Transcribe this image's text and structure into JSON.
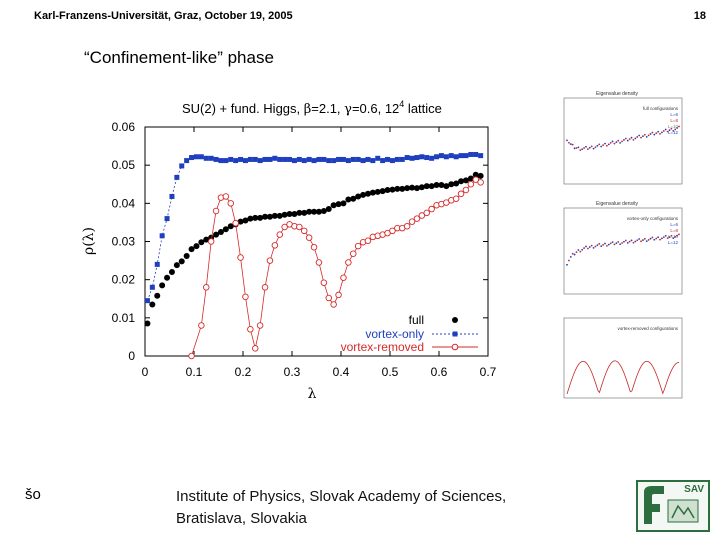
{
  "header": {
    "left": "Karl-Franzens-Universität, Graz, October 19, 2005",
    "page": "18"
  },
  "slide_title": "“Confinement-like” phase",
  "chart_data": {
    "type": "scatter",
    "title_parts": {
      "t1": "SU(2) + fund. Higgs, ",
      "beta": "β",
      "t2": "=2.1, ",
      "gamma": "γ",
      "t3": "=0.6, 12",
      "sup": "4",
      "t4": " lattice"
    },
    "xlabel": "λ",
    "ylabel": "ρ(λ)",
    "xlim": [
      0,
      0.7
    ],
    "ylim": [
      0,
      0.06
    ],
    "x_ticks": [
      "0",
      "0.1",
      "0.2",
      "0.3",
      "0.4",
      "0.5",
      "0.6",
      "0.7"
    ],
    "y_ticks": [
      "0",
      "0.01",
      "0.02",
      "0.03",
      "0.04",
      "0.05",
      "0.06"
    ],
    "legend": [
      "full",
      "vortex-only",
      "vortex-removed"
    ],
    "series": [
      {
        "name": "full",
        "color": "#000000",
        "marker": "filled-circle",
        "x": [
          0.005,
          0.015,
          0.025,
          0.035,
          0.045,
          0.055,
          0.065,
          0.075,
          0.085,
          0.095,
          0.105,
          0.115,
          0.125,
          0.135,
          0.145,
          0.155,
          0.165,
          0.175,
          0.185,
          0.195,
          0.205,
          0.215,
          0.225,
          0.235,
          0.245,
          0.255,
          0.265,
          0.275,
          0.285,
          0.295,
          0.305,
          0.315,
          0.325,
          0.335,
          0.345,
          0.355,
          0.365,
          0.375,
          0.385,
          0.395,
          0.405,
          0.415,
          0.425,
          0.435,
          0.445,
          0.455,
          0.465,
          0.475,
          0.485,
          0.495,
          0.505,
          0.515,
          0.525,
          0.535,
          0.545,
          0.555,
          0.565,
          0.575,
          0.585,
          0.595,
          0.605,
          0.615,
          0.625,
          0.635,
          0.645,
          0.655,
          0.665,
          0.675,
          0.685
        ],
        "y": [
          0.0085,
          0.0135,
          0.0158,
          0.0185,
          0.0205,
          0.022,
          0.0238,
          0.0248,
          0.0262,
          0.028,
          0.0288,
          0.0298,
          0.0305,
          0.031,
          0.0318,
          0.0325,
          0.0332,
          0.034,
          0.0345,
          0.0352,
          0.0355,
          0.036,
          0.0362,
          0.0362,
          0.0365,
          0.0365,
          0.0367,
          0.0367,
          0.037,
          0.0372,
          0.0372,
          0.0375,
          0.0375,
          0.0378,
          0.0378,
          0.0378,
          0.038,
          0.0385,
          0.0395,
          0.0398,
          0.04,
          0.041,
          0.0412,
          0.0418,
          0.0422,
          0.0425,
          0.0428,
          0.043,
          0.0432,
          0.0435,
          0.0436,
          0.0438,
          0.0438,
          0.044,
          0.0441,
          0.044,
          0.0442,
          0.0445,
          0.0445,
          0.0448,
          0.0448,
          0.0445,
          0.045,
          0.0452,
          0.0458,
          0.046,
          0.0465,
          0.0475,
          0.0472
        ]
      },
      {
        "name": "vortex-only",
        "color": "#1f3fbf",
        "marker": "filled-square",
        "x": [
          0.005,
          0.015,
          0.025,
          0.035,
          0.045,
          0.055,
          0.065,
          0.075,
          0.085,
          0.095,
          0.105,
          0.115,
          0.125,
          0.135,
          0.145,
          0.155,
          0.165,
          0.175,
          0.185,
          0.195,
          0.205,
          0.215,
          0.225,
          0.235,
          0.245,
          0.255,
          0.265,
          0.275,
          0.285,
          0.295,
          0.305,
          0.315,
          0.325,
          0.335,
          0.345,
          0.355,
          0.365,
          0.375,
          0.385,
          0.395,
          0.405,
          0.415,
          0.425,
          0.435,
          0.445,
          0.455,
          0.465,
          0.475,
          0.485,
          0.495,
          0.505,
          0.515,
          0.525,
          0.535,
          0.545,
          0.555,
          0.565,
          0.575,
          0.585,
          0.595,
          0.605,
          0.615,
          0.625,
          0.635,
          0.645,
          0.655,
          0.665,
          0.675,
          0.685
        ],
        "y": [
          0.0145,
          0.018,
          0.024,
          0.0315,
          0.036,
          0.0418,
          0.0468,
          0.0498,
          0.0512,
          0.052,
          0.0522,
          0.0522,
          0.0518,
          0.0518,
          0.0515,
          0.0512,
          0.0512,
          0.0515,
          0.0512,
          0.0515,
          0.0512,
          0.0515,
          0.0515,
          0.0512,
          0.0515,
          0.0515,
          0.0518,
          0.0515,
          0.0515,
          0.0515,
          0.0512,
          0.0515,
          0.0512,
          0.0515,
          0.0512,
          0.0515,
          0.0515,
          0.0512,
          0.0512,
          0.0515,
          0.0515,
          0.0512,
          0.0515,
          0.0515,
          0.0512,
          0.0515,
          0.0512,
          0.0518,
          0.0512,
          0.0515,
          0.0512,
          0.0515,
          0.0515,
          0.052,
          0.0518,
          0.052,
          0.0522,
          0.052,
          0.0518,
          0.0522,
          0.0525,
          0.0522,
          0.0525,
          0.0522,
          0.0525,
          0.0525,
          0.0528,
          0.0528,
          0.0525
        ]
      },
      {
        "name": "vortex-removed",
        "color": "#d62a2a",
        "marker": "open-circle",
        "x": [
          0.095,
          0.115,
          0.125,
          0.135,
          0.145,
          0.155,
          0.165,
          0.175,
          0.185,
          0.195,
          0.205,
          0.215,
          0.225,
          0.235,
          0.245,
          0.255,
          0.265,
          0.275,
          0.285,
          0.295,
          0.305,
          0.315,
          0.325,
          0.335,
          0.345,
          0.355,
          0.365,
          0.375,
          0.385,
          0.395,
          0.405,
          0.415,
          0.425,
          0.435,
          0.445,
          0.455,
          0.465,
          0.475,
          0.485,
          0.495,
          0.505,
          0.515,
          0.525,
          0.535,
          0.545,
          0.555,
          0.565,
          0.575,
          0.585,
          0.595,
          0.605,
          0.615,
          0.625,
          0.635,
          0.645,
          0.655,
          0.665,
          0.675,
          0.685
        ],
        "y": [
          0.0,
          0.008,
          0.018,
          0.03,
          0.038,
          0.0415,
          0.0418,
          0.04,
          0.0348,
          0.0258,
          0.0155,
          0.007,
          0.002,
          0.008,
          0.018,
          0.025,
          0.029,
          0.0318,
          0.0338,
          0.0345,
          0.034,
          0.0338,
          0.0328,
          0.031,
          0.0285,
          0.0245,
          0.0192,
          0.0152,
          0.0135,
          0.016,
          0.0205,
          0.0245,
          0.0268,
          0.0288,
          0.0298,
          0.0302,
          0.0312,
          0.0315,
          0.0318,
          0.0322,
          0.0328,
          0.0335,
          0.0335,
          0.034,
          0.0352,
          0.036,
          0.0368,
          0.0375,
          0.0385,
          0.0395,
          0.0398,
          0.0402,
          0.0408,
          0.0412,
          0.0425,
          0.0435,
          0.045,
          0.0462,
          0.0455
        ]
      }
    ]
  },
  "thumbnails": [
    {
      "title": "Eigenvalue density",
      "labels": [
        "full configurations",
        "L=6",
        "L=8",
        "L=10",
        "L=12"
      ]
    },
    {
      "title": "Eigenvalue density",
      "labels": [
        "vortex-only configurations",
        "L=6",
        "L=8",
        "L=10",
        "L=12"
      ]
    },
    {
      "title": "",
      "labels": [
        "vortex-removed configurations"
      ]
    }
  ],
  "footer": {
    "left": "šo",
    "line1": "Institute of Physics, Slovak Academy of Sciences,",
    "line2": "Bratislava, Slovakia",
    "logo_text": "SAV"
  }
}
